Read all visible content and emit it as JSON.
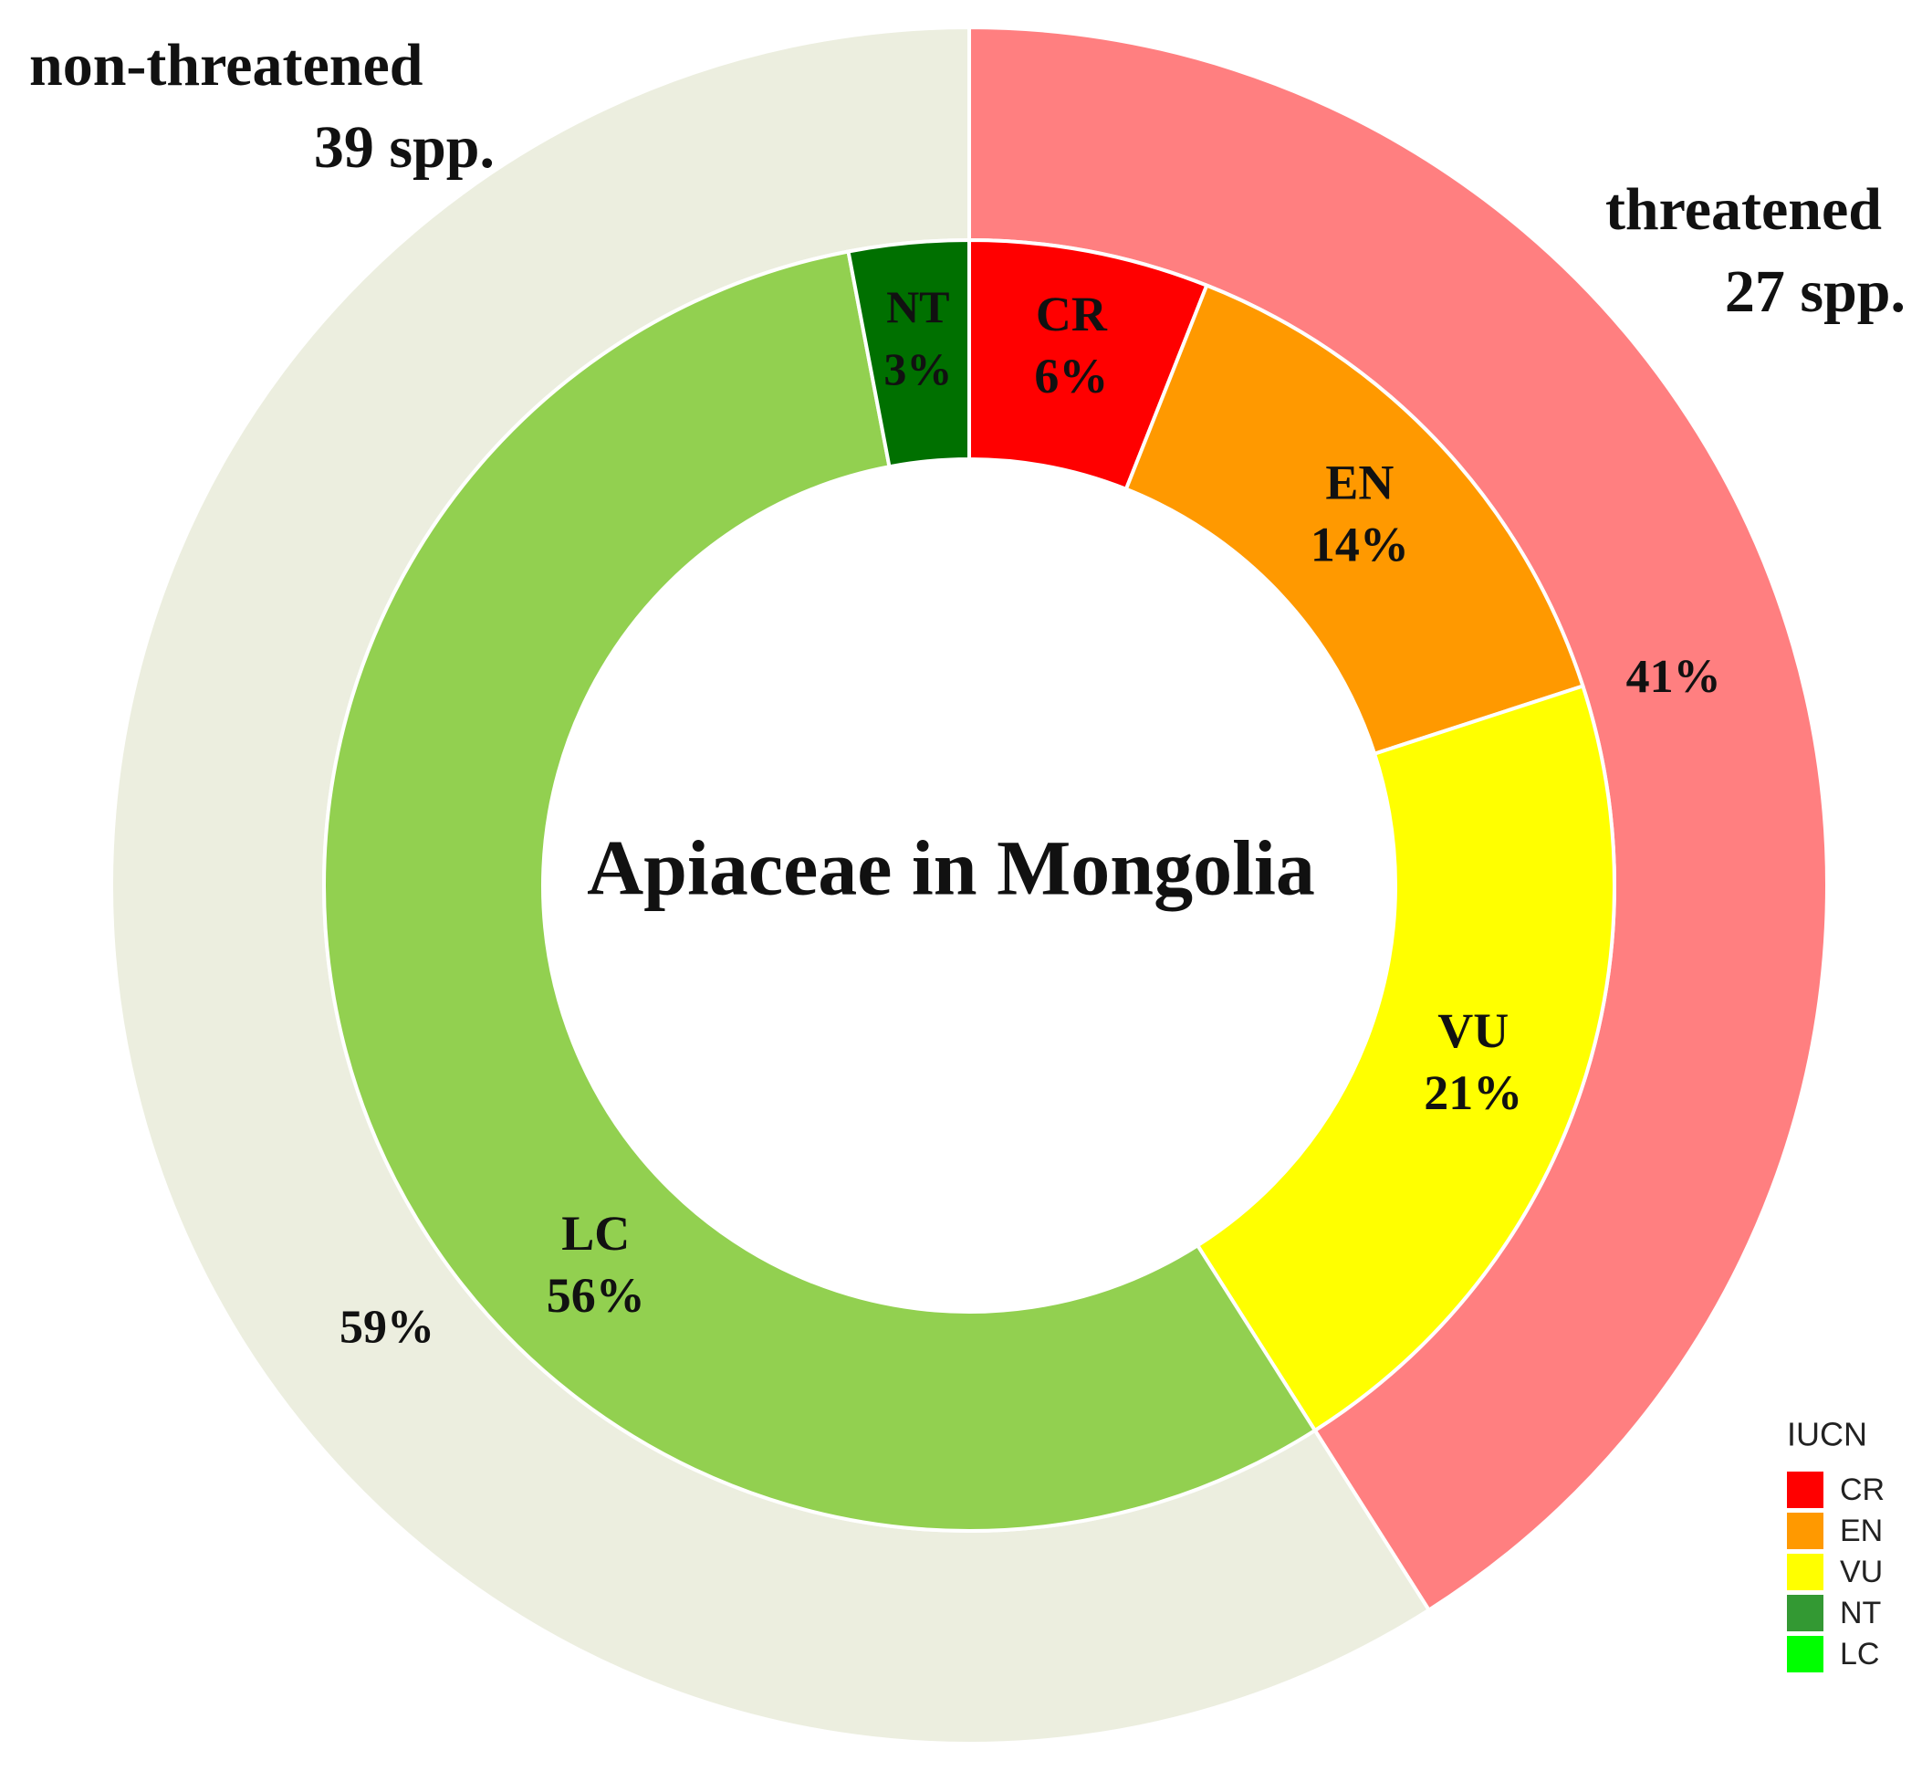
{
  "chart_data": {
    "type": "pie",
    "title": "Apiaceae in Mongolia",
    "outer_ring": [
      {
        "name": "threatened",
        "count_label": "27 spp.",
        "percent": 41,
        "value_label": "41%",
        "color": "#FF7F80"
      },
      {
        "name": "non-threatened",
        "count_label": "39 spp.",
        "percent": 59,
        "value_label": "59%",
        "color": "#ECEEDF"
      }
    ],
    "inner_ring": [
      {
        "name": "CR",
        "percent": 6,
        "value_label": "6%",
        "color": "#FF0000"
      },
      {
        "name": "EN",
        "percent": 14,
        "value_label": "14%",
        "color": "#FF9900"
      },
      {
        "name": "VU",
        "percent": 21,
        "value_label": "21%",
        "color": "#FFFF00"
      },
      {
        "name": "LC",
        "percent": 56,
        "value_label": "56%",
        "color": "#92D050"
      },
      {
        "name": "NT",
        "percent": 3,
        "value_label": "3%",
        "color": "#007000"
      }
    ],
    "legend": {
      "title": "IUCN",
      "placement": "bottom-right",
      "items": [
        {
          "label": "CR",
          "color": "#FF0000"
        },
        {
          "label": "EN",
          "color": "#FF9900"
        },
        {
          "label": "VU",
          "color": "#FFFF00"
        },
        {
          "label": "NT",
          "color": "#339933"
        },
        {
          "label": "LC",
          "color": "#00FF00"
        }
      ]
    }
  }
}
